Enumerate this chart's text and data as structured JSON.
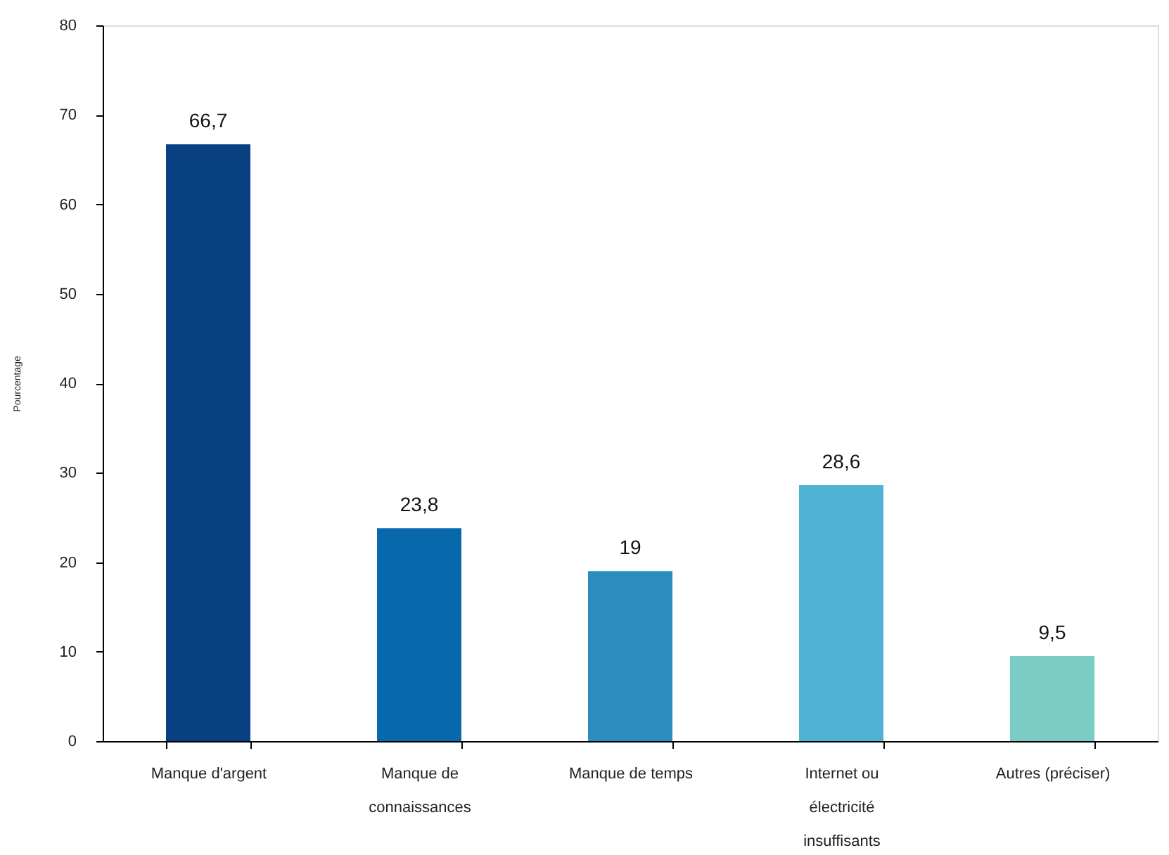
{
  "chart_data": {
    "type": "bar",
    "ylabel": "Pourcentage",
    "categories": [
      "Manque d'argent",
      "Manque de connaissances",
      "Manque de temps",
      "Internet ou électricité insuffisants",
      "Autres (préciser)"
    ],
    "values": [
      66.7,
      23.8,
      19,
      28.6,
      9.5
    ],
    "colors": [
      "#084081",
      "#0868ac",
      "#2b8cbe",
      "#4eb3d3",
      "#7bccc4"
    ],
    "value_labels": [
      "66,7",
      "23,8",
      "19",
      "28,6",
      "9,5"
    ],
    "ylim": [
      0,
      80
    ],
    "yticks": [
      0,
      10,
      20,
      30,
      40,
      50,
      60,
      70,
      80
    ]
  }
}
